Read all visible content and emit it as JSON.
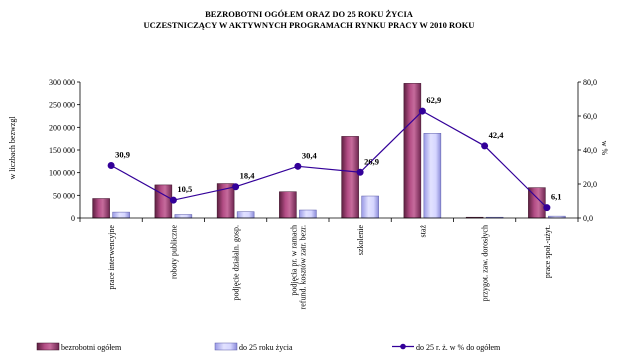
{
  "chart_data": {
    "type": "bar",
    "title": "BEZROBOTNI OGÓŁEM ORAZ DO 25 ROKU ŻYCIA",
    "subtitle": "UCZESTNICZĄCY W AKTYWNYCH PROGRAMACH RYNKU PRACY W 2010 ROKU",
    "ylabel": "w liczbach bezwzgl",
    "y2label": "w %",
    "ylim": [
      0,
      300000
    ],
    "y2lim": [
      0,
      80
    ],
    "yticks": [
      "0",
      "50 000",
      "100 000",
      "150 000",
      "200 000",
      "250 000",
      "300 000"
    ],
    "y2ticks": [
      "0,0",
      "20,0",
      "40,0",
      "60,0",
      "80,0"
    ],
    "grid": false,
    "legend_position": "bottom",
    "categories": [
      [
        "prace interwencyjne"
      ],
      [
        "roboty publiczne"
      ],
      [
        "podjęcie działaln. gosp."
      ],
      [
        "podjęcia pr. w ramach",
        "refund. kosztów zatr. bezr."
      ],
      [
        "szkolenie"
      ],
      [
        "staż"
      ],
      [
        "przygot. zaw. dorosłych"
      ],
      [
        "prace społ.-użyt."
      ]
    ],
    "series": [
      {
        "name": "bezrobotni ogółem",
        "type": "bar",
        "axis": "left",
        "color": "#993366",
        "values": [
          43000,
          73000,
          76000,
          58000,
          180000,
          297000,
          1000,
          67000
        ]
      },
      {
        "name": "do 25 roku życia",
        "type": "bar",
        "axis": "left",
        "color": "#ccccff",
        "values": [
          13000,
          7700,
          14000,
          17600,
          48500,
          186800,
          400,
          4100
        ]
      },
      {
        "name": "do 25 r. ż. w % do ogółem",
        "type": "line",
        "axis": "right",
        "color": "#330099",
        "values": [
          30.9,
          10.5,
          18.4,
          30.4,
          26.9,
          62.9,
          42.4,
          6.1
        ],
        "labels": [
          "30,9",
          "10,5",
          "18,4",
          "30,4",
          "26,9",
          "62,9",
          "42,4",
          "6,1"
        ]
      }
    ]
  }
}
